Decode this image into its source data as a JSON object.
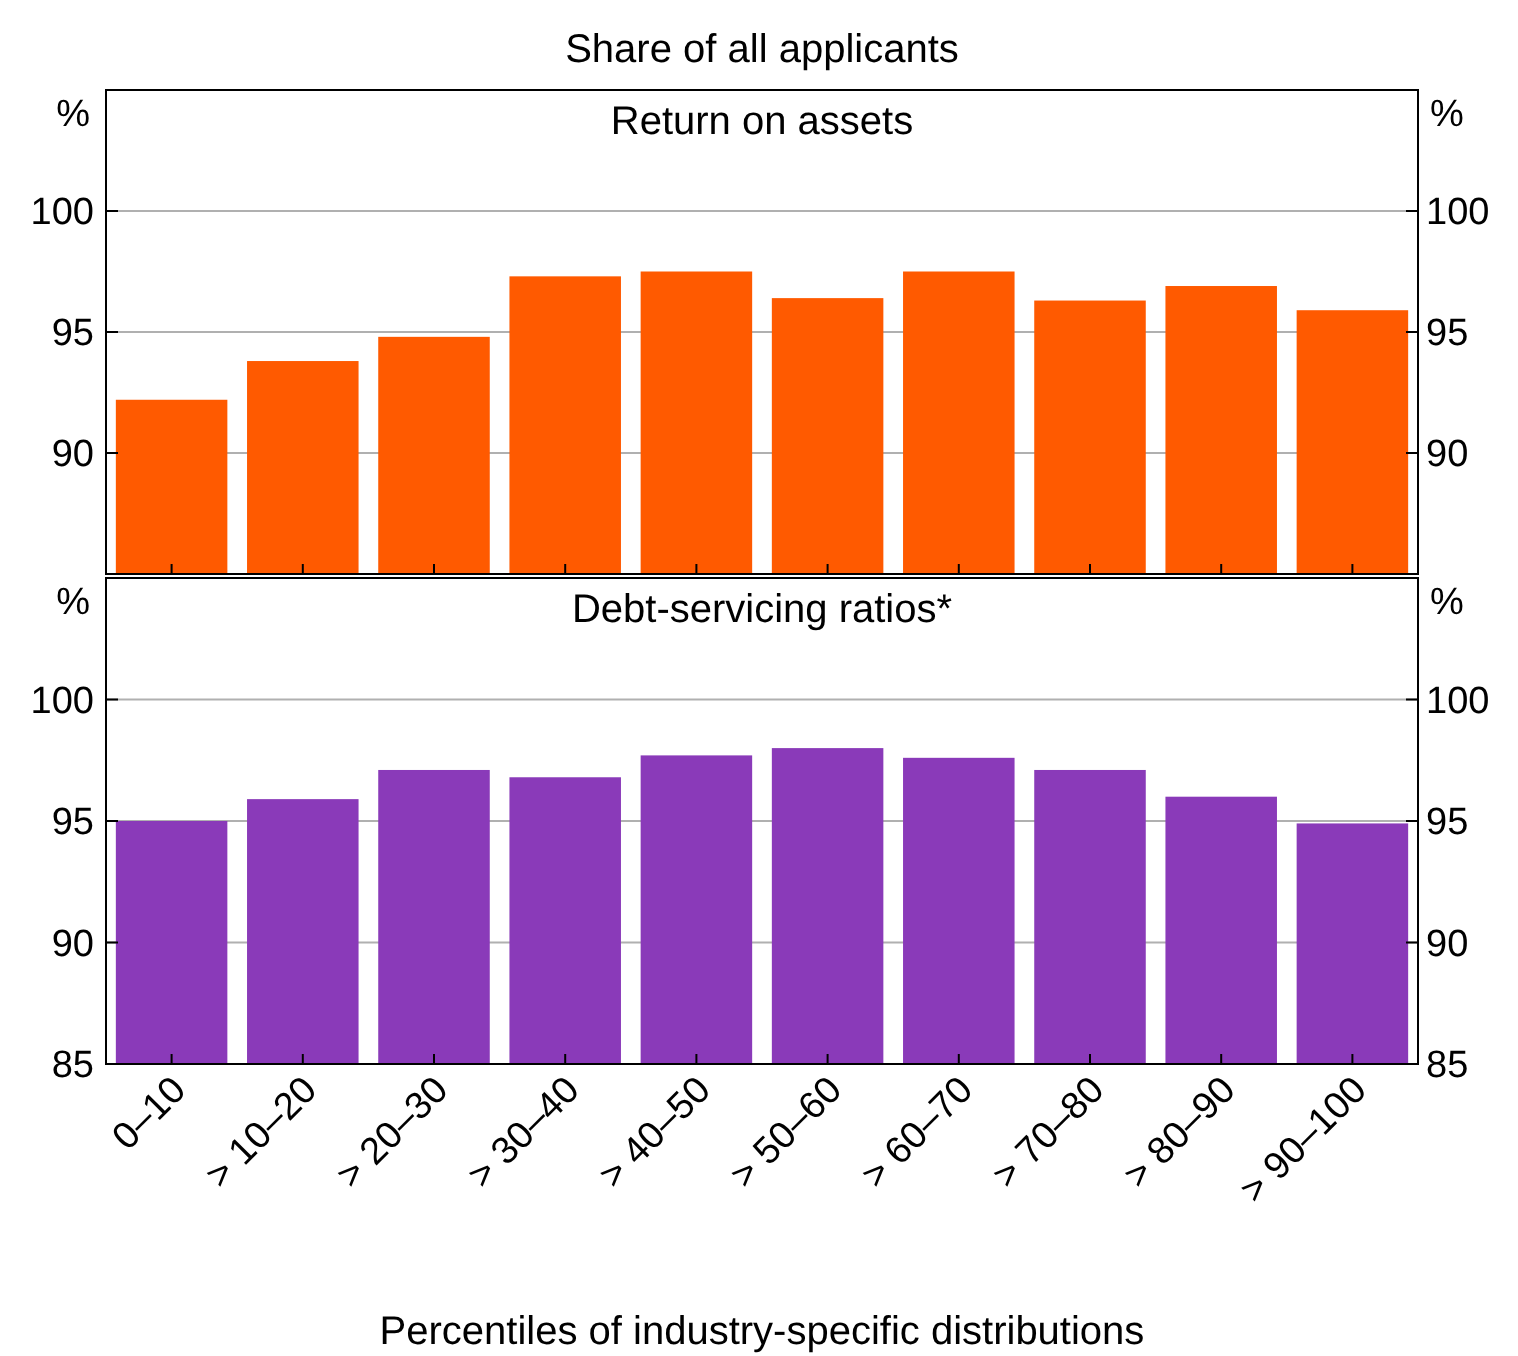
{
  "chart_data": [
    {
      "type": "bar",
      "title": "Return on assets",
      "subtitle": "Share of all applicants",
      "ylabel": "%",
      "y2label": "%",
      "categories": [
        null,
        null,
        null,
        null,
        null,
        null,
        null,
        null,
        null,
        null
      ],
      "values": [
        92.2,
        93.8,
        94.8,
        97.3,
        97.5,
        96.4,
        97.5,
        96.3,
        96.9,
        95.9
      ],
      "color": "#ff5a00",
      "ylim": [
        85,
        105
      ],
      "yticks": [
        90,
        95,
        100
      ],
      "y2lim": [
        85,
        105
      ],
      "y2ticks": [
        90,
        95,
        100
      ],
      "grid": "y",
      "tick_labels": "y"
    },
    {
      "type": "bar",
      "title": "Debt-servicing ratios*",
      "xlabel": "Percentiles of industry-specific distributions",
      "ylabel": "%",
      "y2label": "%",
      "categories": [
        "0–10",
        "> 10–20",
        "> 20–30",
        "> 30–40",
        "> 40–50",
        "> 50–60",
        "> 60–70",
        "> 70–80",
        "> 80–90",
        "> 90–100"
      ],
      "values": [
        95.0,
        95.9,
        97.1,
        96.8,
        97.7,
        98.0,
        97.6,
        97.1,
        96.0,
        94.9
      ],
      "color": "#8a3ab9",
      "ylim": [
        85,
        105
      ],
      "yticks": [
        85,
        90,
        95,
        100
      ],
      "y2lim": [
        85,
        105
      ],
      "y2ticks": [
        85,
        90,
        95,
        100
      ],
      "grid": "y"
    }
  ]
}
